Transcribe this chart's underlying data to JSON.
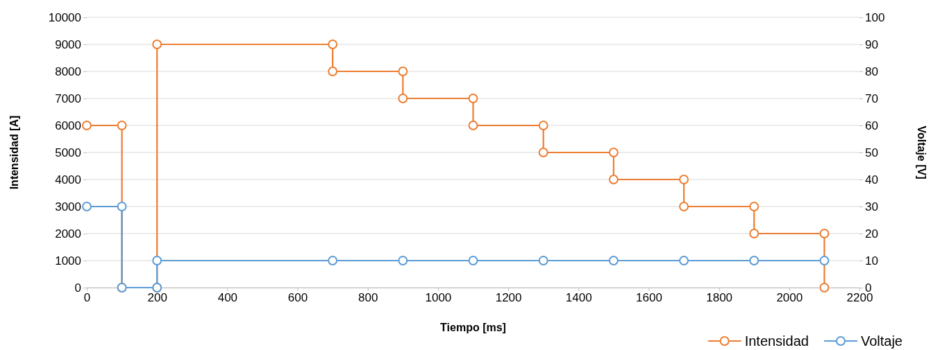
{
  "chart_data": {
    "type": "line",
    "xlabel": "Tiempo [ms]",
    "ylabel": "Intensidad [A]",
    "y2label": "Voltaje [V]",
    "xlim": [
      0,
      2200
    ],
    "xticks": [
      0,
      200,
      400,
      600,
      800,
      1000,
      1200,
      1400,
      1600,
      1800,
      2000,
      2200
    ],
    "ylim": [
      0,
      10000
    ],
    "yticks": [
      0,
      1000,
      2000,
      3000,
      4000,
      5000,
      6000,
      7000,
      8000,
      9000,
      10000
    ],
    "y2lim": [
      0,
      100
    ],
    "y2ticks": [
      0,
      10,
      20,
      30,
      40,
      50,
      60,
      70,
      80,
      90,
      100
    ],
    "grid": "y",
    "legend": "bottom right",
    "marker": "circle",
    "line_style": "solid",
    "series": [
      {
        "name": "Intensidad",
        "color": "#ed7d31",
        "x": [
          0,
          100,
          100,
          200,
          200,
          700,
          700,
          900,
          900,
          1100,
          1100,
          1300,
          1300,
          1500,
          1500,
          1700,
          1700,
          1900,
          1900,
          2100,
          2100
        ],
        "values": [
          6000,
          6000,
          0,
          0,
          9000,
          9000,
          8000,
          8000,
          7000,
          7000,
          6000,
          6000,
          5000,
          5000,
          4000,
          4000,
          3000,
          3000,
          2000,
          2000,
          0
        ]
      },
      {
        "name": "Voltaje",
        "color": "#5b9bd5",
        "axis": "y2",
        "x": [
          0,
          100,
          100,
          200,
          200,
          700,
          900,
          1100,
          1300,
          1500,
          1700,
          1900,
          2100
        ],
        "values": [
          30,
          30,
          0,
          0,
          10,
          10,
          10,
          10,
          10,
          10,
          10,
          10,
          10
        ]
      }
    ]
  }
}
